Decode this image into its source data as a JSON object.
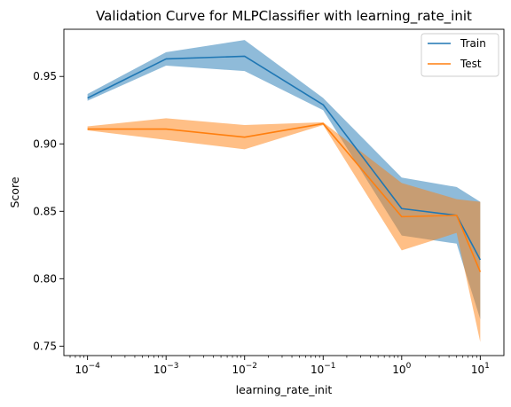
{
  "chart_data": {
    "type": "line",
    "title": "Validation Curve for MLPClassifier with learning_rate_init",
    "xlabel": "learning_rate_init",
    "ylabel": "Score",
    "xscale": "log",
    "x": [
      0.0001,
      0.001,
      0.01,
      0.1,
      1,
      5,
      10
    ],
    "xlim": [
      5e-05,
      20
    ],
    "ylim": [
      0.743,
      0.985
    ],
    "x_ticks": [
      {
        "value": 0.0001,
        "base": "10",
        "exp": "−4"
      },
      {
        "value": 0.001,
        "base": "10",
        "exp": "−3"
      },
      {
        "value": 0.01,
        "base": "10",
        "exp": "−2"
      },
      {
        "value": 0.1,
        "base": "10",
        "exp": "−1"
      },
      {
        "value": 1,
        "base": "10",
        "exp": "0"
      },
      {
        "value": 10,
        "base": "10",
        "exp": "1"
      }
    ],
    "y_ticks": [
      {
        "value": 0.75,
        "label": "0.75"
      },
      {
        "value": 0.8,
        "label": "0.80"
      },
      {
        "value": 0.85,
        "label": "0.85"
      },
      {
        "value": 0.9,
        "label": "0.90"
      },
      {
        "value": 0.95,
        "label": "0.95"
      }
    ],
    "grid": false,
    "legend_position": "top-right",
    "series": [
      {
        "name": "Train",
        "color": "#1f77b4",
        "band_color": "#1f77b4",
        "values": [
          0.934,
          0.963,
          0.965,
          0.929,
          0.852,
          0.847,
          0.814
        ],
        "lower": [
          0.932,
          0.958,
          0.954,
          0.925,
          0.832,
          0.826,
          0.77
        ],
        "upper": [
          0.937,
          0.968,
          0.977,
          0.934,
          0.875,
          0.868,
          0.857
        ]
      },
      {
        "name": "Test",
        "color": "#ff7f0e",
        "band_color": "#ff7f0e",
        "values": [
          0.911,
          0.911,
          0.905,
          0.915,
          0.846,
          0.847,
          0.805
        ],
        "lower": [
          0.91,
          0.903,
          0.896,
          0.914,
          0.821,
          0.834,
          0.753
        ],
        "upper": [
          0.913,
          0.919,
          0.914,
          0.916,
          0.871,
          0.859,
          0.857
        ]
      }
    ]
  }
}
